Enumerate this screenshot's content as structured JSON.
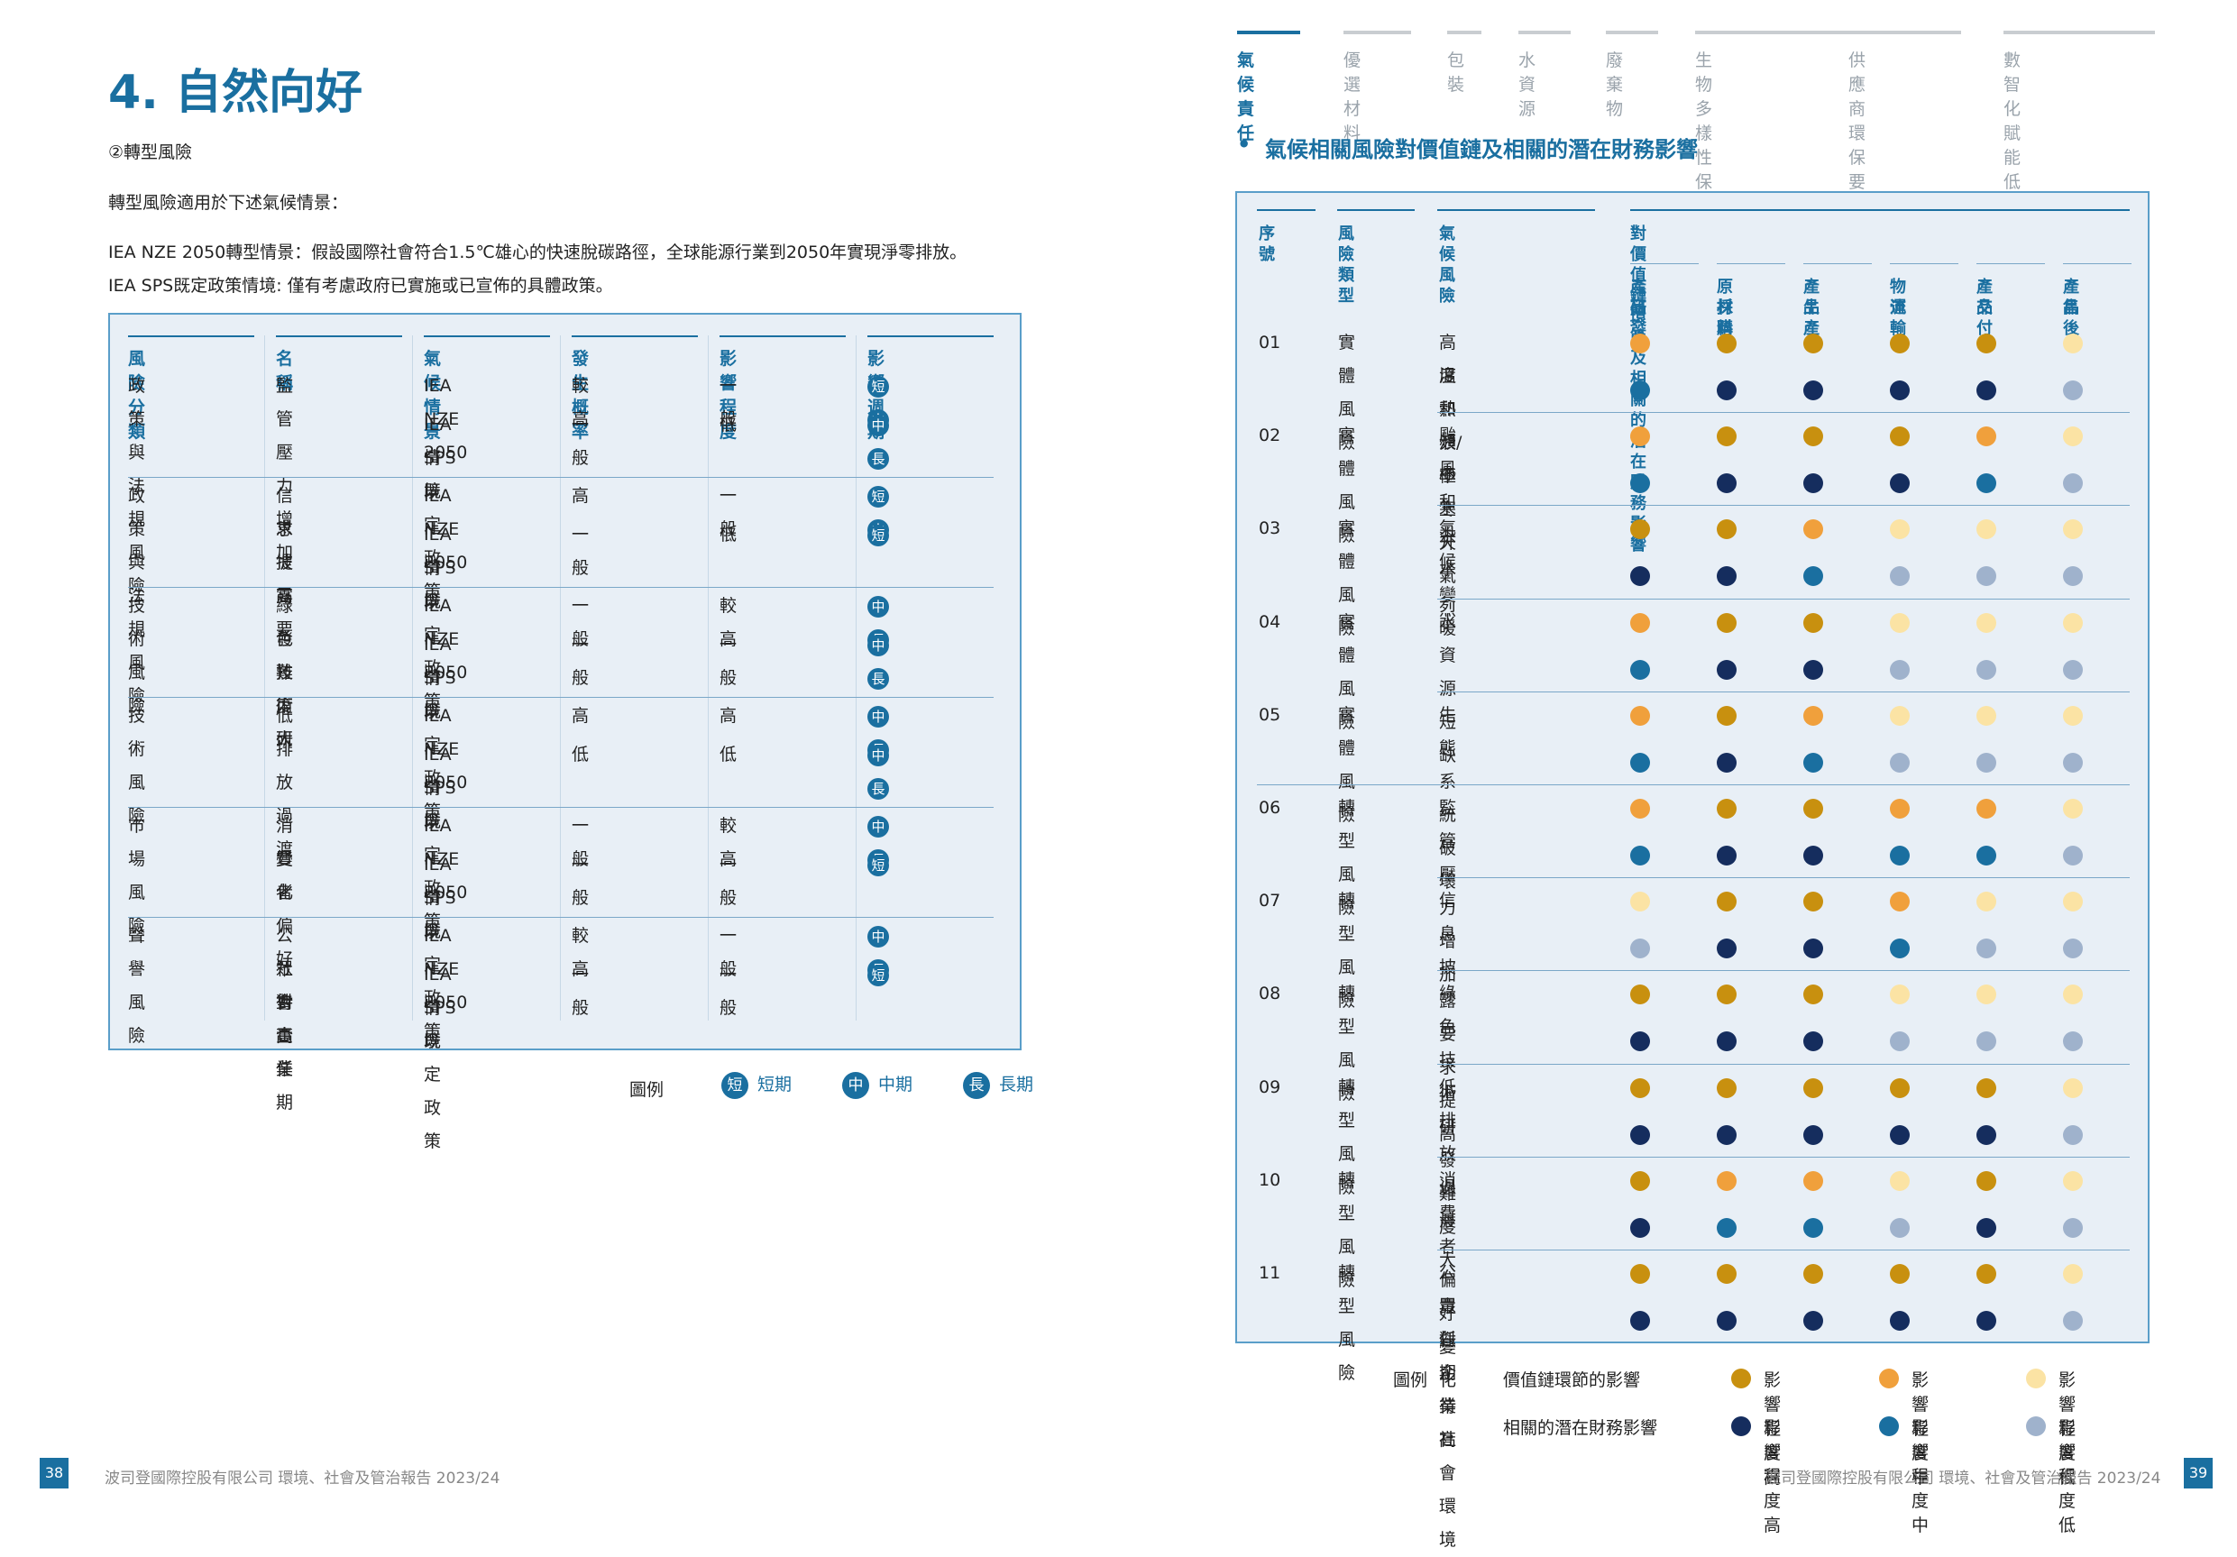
{
  "left": {
    "title": "4. 自然向好",
    "subheading": "②轉型風險",
    "intro": "轉型風險適用於下述氣候情景：",
    "scenario1": "IEA NZE 2050轉型情景：假設國際社會符合1.5℃雄心的快速脫碳路徑，全球能源行業到2050年實現淨零排放。",
    "scenario2": "IEA SPS既定政策情境: 僅有考慮政府已實施或已宣佈的具體政策。",
    "table": {
      "headers": [
        "風險分類",
        "名稱",
        "氣候情景",
        "發生概率",
        "影響程度",
        "影響週期"
      ],
      "groups": [
        {
          "category": "政策與法規風險",
          "name_lines": [
            "監管壓力增加"
          ],
          "rows": [
            {
              "scenario": "IEA NZE 2050",
              "scenario2": "",
              "prob": "較高",
              "impact": "一般",
              "period": [
                "短",
                "中"
              ]
            },
            {
              "scenario": "IEA SPS既定政策",
              "scenario2": "情境",
              "prob": "一般",
              "impact": "低",
              "period": [
                "中",
                "長"
              ]
            }
          ]
        },
        {
          "category": "政策與法規風險",
          "name_lines": [
            "信 息 披 露 要",
            "求提高"
          ],
          "rows": [
            {
              "scenario": "IEA NZE 2050",
              "scenario2": "",
              "prob": "高",
              "impact": "一般",
              "period": [
                "短",
                "中"
              ]
            },
            {
              "scenario": "IEA SPS既定政策",
              "scenario2": "情境",
              "prob": "一般",
              "impact": "低",
              "period": [
                "短"
              ]
            }
          ]
        },
        {
          "category": "技術風險",
          "name_lines": [
            "綠 色 技 術 研",
            "發難度大"
          ],
          "rows": [
            {
              "scenario": "IEA NZE 2050",
              "scenario2": "",
              "prob": "一般",
              "impact": "較高",
              "period": [
                "中",
                "長"
              ]
            },
            {
              "scenario": "IEA SPS既定政策",
              "scenario2": "情境",
              "prob": "一般",
              "impact": "一般",
              "period": [
                "中",
                "長"
              ]
            }
          ]
        },
        {
          "category": "技術風險",
          "name_lines": [
            "低排放過渡"
          ],
          "rows": [
            {
              "scenario": "IEA NZE 2050",
              "scenario2": "",
              "prob": "高",
              "impact": "高",
              "period": [
                "中",
                "長"
              ]
            },
            {
              "scenario": "IEA SPS既定政策",
              "scenario2": "情境",
              "prob": "低",
              "impact": "低",
              "period": [
                "中",
                "長"
              ]
            }
          ]
        },
        {
          "category": "市場風險",
          "name_lines": [
            "消 費 者 偏 好",
            "變化"
          ],
          "rows": [
            {
              "scenario": "IEA NZE 2050",
              "scenario2": "",
              "prob": "一般",
              "impact": "較高",
              "period": [
                "中",
                "長"
              ]
            },
            {
              "scenario": "IEA SPS既定政策",
              "scenario2": "情境",
              "prob": "一般",
              "impact": "一般",
              "period": [
                "短"
              ]
            }
          ]
        },
        {
          "category": "聲譽風險",
          "name_lines": [
            "公 眾 對 企 業",
            "社 會 責 任 期",
            "待高"
          ],
          "rows": [
            {
              "scenario": "IEA NZE 2050",
              "scenario2": "",
              "prob": "較高",
              "impact": "一般",
              "period": [
                "中",
                "長"
              ]
            },
            {
              "scenario": "IEA SPS既定政策",
              "scenario2": "情境",
              "prob": "一般",
              "impact": "一般",
              "period": [
                "短"
              ]
            }
          ]
        }
      ]
    },
    "legend": {
      "label": "圖例",
      "items": [
        {
          "badge": "短",
          "text": "短期"
        },
        {
          "badge": "中",
          "text": "中期"
        },
        {
          "badge": "長",
          "text": "長期"
        }
      ]
    },
    "footer": "波司登國際控股有限公司 環境、社會及管治報告 2023/24",
    "page": "38"
  },
  "right": {
    "nav": [
      {
        "label": "氣候責任",
        "active": true
      },
      {
        "label": "優選材料",
        "active": false
      },
      {
        "label": "包裝",
        "active": false
      },
      {
        "label": "水資源",
        "active": false
      },
      {
        "label": "廢棄物",
        "active": false
      },
      {
        "label": "生物多樣性保護",
        "active": false
      },
      {
        "label": "供應商環保要求",
        "active": false
      },
      {
        "label": "數智化賦能低碳減排",
        "active": false
      }
    ],
    "heading": "氣候相關風險對價值鏈及相關的潛在財務影響",
    "table": {
      "headers": {
        "no": "序號",
        "type": "風險類型",
        "risk": "氣候風險",
        "impact": "對價值鏈環節及相關的潛在財務影響"
      },
      "stages": [
        [
          "產品",
          "研發"
        ],
        [
          "原材料",
          "採購"
        ],
        [
          "產品",
          "生產"
        ],
        [
          "物流",
          "運輸"
        ],
        [
          "產品",
          "交付"
        ],
        [
          "產品",
          "售後"
        ]
      ],
      "rows": [
        {
          "no": "01",
          "type": "實體風險",
          "risk": [
            "高溫熱浪/極寒天氣烈",
            "度和頻率上升"
          ],
          "vc": [
            "M",
            "H",
            "H",
            "H",
            "H",
            "L"
          ],
          "fin": [
            "M",
            "H",
            "H",
            "H",
            "H",
            "L"
          ]
        },
        {
          "no": "02",
          "type": "實體風險",
          "risk": [
            "颱風和洪水"
          ],
          "vc": [
            "M",
            "H",
            "H",
            "H",
            "M",
            "L"
          ],
          "fin": [
            "M",
            "H",
            "H",
            "H",
            "M",
            "L"
          ]
        },
        {
          "no": "03",
          "type": "實體風險",
          "risk": [
            "氣候變暖"
          ],
          "vc": [
            "H",
            "H",
            "M",
            "L",
            "L",
            "L"
          ],
          "fin": [
            "H",
            "H",
            "M",
            "L",
            "L",
            "L"
          ]
        },
        {
          "no": "04",
          "type": "實體風險",
          "risk": [
            "水資源短缺"
          ],
          "vc": [
            "M",
            "H",
            "H",
            "L",
            "L",
            "L"
          ],
          "fin": [
            "M",
            "H",
            "H",
            "L",
            "L",
            "L"
          ]
        },
        {
          "no": "05",
          "type": "實體風險",
          "risk": [
            "生態系統破壞"
          ],
          "vc": [
            "M",
            "H",
            "M",
            "L",
            "L",
            "L"
          ],
          "fin": [
            "M",
            "H",
            "M",
            "L",
            "L",
            "L"
          ]
        },
        {
          "no": "06",
          "type": "轉型風險",
          "risk": [
            "監管壓力增加"
          ],
          "vc": [
            "M",
            "H",
            "H",
            "M",
            "M",
            "L"
          ],
          "fin": [
            "M",
            "H",
            "H",
            "M",
            "M",
            "L"
          ]
        },
        {
          "no": "07",
          "type": "轉型風險",
          "risk": [
            "信息披露要求提高"
          ],
          "vc": [
            "L",
            "H",
            "H",
            "M",
            "L",
            "L"
          ],
          "fin": [
            "L",
            "H",
            "H",
            "M",
            "L",
            "L"
          ]
        },
        {
          "no": "08",
          "type": "轉型風險",
          "risk": [
            "綠色技術研發難度大"
          ],
          "vc": [
            "H",
            "H",
            "H",
            "L",
            "L",
            "L"
          ],
          "fin": [
            "H",
            "H",
            "H",
            "L",
            "L",
            "L"
          ]
        },
        {
          "no": "09",
          "type": "轉型風險",
          "risk": [
            "低排放過渡"
          ],
          "vc": [
            "H",
            "H",
            "H",
            "H",
            "H",
            "L"
          ],
          "fin": [
            "H",
            "H",
            "H",
            "H",
            "H",
            "L"
          ]
        },
        {
          "no": "10",
          "type": "轉型風險",
          "risk": [
            "消費者偏好變化"
          ],
          "vc": [
            "H",
            "M",
            "M",
            "L",
            "H",
            "L"
          ],
          "fin": [
            "H",
            "M",
            "M",
            "L",
            "H",
            "L"
          ]
        },
        {
          "no": "11",
          "type": "轉型風險",
          "risk": [
            "公眾對企業社會環境",
            "責任期待高"
          ],
          "vc": [
            "H",
            "H",
            "H",
            "H",
            "H",
            "L"
          ],
          "fin": [
            "H",
            "H",
            "H",
            "H",
            "H",
            "L"
          ]
        }
      ]
    },
    "colors": {
      "vc": {
        "H": "#c8900f",
        "M": "#f0a03c",
        "L": "#fbe3a4"
      },
      "fin": {
        "H": "#152d5e",
        "M": "#1a6fa0",
        "L": "#9fb2cc"
      }
    },
    "legend": {
      "label": "圖例",
      "row1_label": "價值鏈環節的影響",
      "row2_label": "相關的潛在財務影響",
      "items": [
        "影響程度高",
        "影響程度中",
        "影響程度低"
      ]
    },
    "footer": "波司登國際控股有限公司 環境、社會及管治報告 2023/24",
    "page": "39"
  }
}
